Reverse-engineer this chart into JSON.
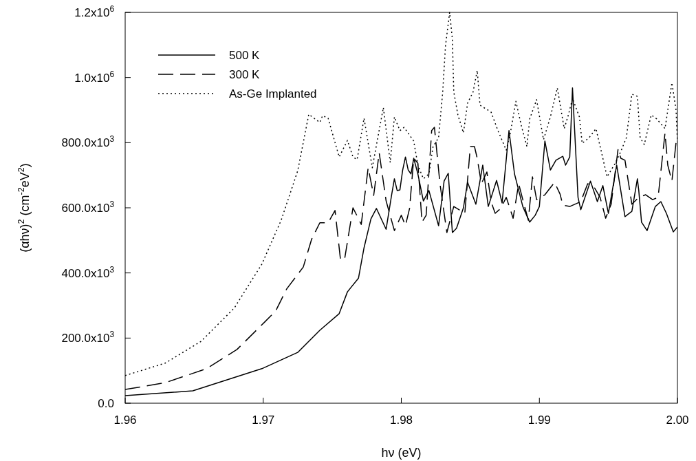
{
  "chart_data": {
    "type": "line",
    "xlabel": "hν (eV)",
    "ylabel": "(αhν)$^{2}$  (cm$^{-2}$eV$^{2}$)",
    "xlim": [
      1.96,
      2.0
    ],
    "xticks": [
      1.96,
      1.97,
      1.98,
      1.99,
      {
        "value": 2.0,
        "label": "2.00"
      }
    ],
    "ylim": [
      0,
      1200000
    ],
    "yticks": [
      {
        "value": 0,
        "label": "0.0"
      },
      {
        "value": 200000,
        "label": "200.0x10$^{3}$"
      },
      {
        "value": 400000,
        "label": "400.0x10$^{3}$"
      },
      {
        "value": 600000,
        "label": "600.0x10$^{3}$"
      },
      {
        "value": 800000,
        "label": "800.0x10$^{3}$"
      },
      {
        "value": 1000000,
        "label": "1.0x10$^{6}$"
      },
      {
        "value": 1200000,
        "label": "1.2x10$^{6}$"
      }
    ],
    "grid": false,
    "legend": "top left",
    "marker": "none",
    "series": [
      {
        "name": "500 K",
        "color": "#000000",
        "line_style": "solid",
        "x": [
          1.96,
          1.9649,
          1.9699,
          1.9725,
          1.9741,
          1.9755,
          1.9761,
          1.9769,
          1.9773,
          1.9778,
          1.9782,
          1.9789,
          1.9793,
          1.9795,
          1.9797,
          1.9799,
          1.9801,
          1.9803,
          1.9805,
          1.9807,
          1.9809,
          1.9812,
          1.9816,
          1.982,
          1.9827,
          1.9831,
          1.9834,
          1.9837,
          1.984,
          1.9845,
          1.9848,
          1.9854,
          1.9859,
          1.9863,
          1.9869,
          1.9873,
          1.9878,
          1.9882,
          1.9888,
          1.9893,
          1.9897,
          1.99,
          1.9904,
          1.9908,
          1.9912,
          1.9917,
          1.9919,
          1.9922,
          1.9924,
          1.9928,
          1.993,
          1.9937,
          1.9942,
          1.9946,
          1.995,
          1.9956,
          1.9962,
          1.9967,
          1.9971,
          1.9972,
          1.9974,
          1.9978,
          1.9984,
          1.9988,
          1.9992,
          1.9997,
          2.0
        ],
        "values": [
          23000,
          38000,
          106000,
          156000,
          224000,
          275000,
          342000,
          384000,
          477000,
          566000,
          598000,
          534000,
          640000,
          689000,
          653000,
          655000,
          716000,
          756000,
          716000,
          704000,
          752000,
          704000,
          621000,
          653000,
          545000,
          682000,
          706000,
          524000,
          537000,
          600000,
          678000,
          611000,
          731000,
          604000,
          684000,
          615000,
          837000,
          704000,
          604000,
          556000,
          577000,
          604000,
          805000,
          716000,
          746000,
          758000,
          731000,
          756000,
          968000,
          632000,
          594000,
          682000,
          619000,
          668000,
          583000,
          731000,
          573000,
          589000,
          689000,
          653000,
          556000,
          530000,
          604000,
          619000,
          583000,
          526000,
          541000
        ]
      },
      {
        "name": "300 K",
        "color": "#000000",
        "line_style": "dashed",
        "x": [
          1.96,
          1.9629,
          1.9659,
          1.9681,
          1.9701,
          1.9709,
          1.9717,
          1.9729,
          1.9735,
          1.9741,
          1.9747,
          1.9752,
          1.9756,
          1.9759,
          1.9765,
          1.9771,
          1.9776,
          1.978,
          1.9784,
          1.9789,
          1.9795,
          1.98,
          1.9803,
          1.9806,
          1.9809,
          1.9812,
          1.9815,
          1.9818,
          1.9822,
          1.9824,
          1.9828,
          1.9833,
          1.9838,
          1.9846,
          1.985,
          1.9853,
          1.9855,
          1.9858,
          1.9862,
          1.9865,
          1.9868,
          1.9872,
          1.9876,
          1.9881,
          1.9885,
          1.9888,
          1.9892,
          1.9895,
          1.9898,
          1.9904,
          1.9911,
          1.9915,
          1.9917,
          1.9922,
          1.993,
          1.9935,
          1.994,
          1.9944,
          1.9948,
          1.9952,
          1.9957,
          1.9959,
          1.9962,
          1.9967,
          1.9972,
          1.9977,
          1.9982,
          1.9986,
          1.9991,
          1.9993,
          1.9996,
          1.9999,
          2.0
        ],
        "values": [
          42000,
          63000,
          106000,
          165000,
          249000,
          283000,
          351000,
          418000,
          503000,
          554000,
          554000,
          592000,
          439000,
          444000,
          600000,
          549000,
          723000,
          638000,
          769000,
          621000,
          530000,
          577000,
          545000,
          598000,
          752000,
          737000,
          556000,
          577000,
          837000,
          847000,
          674000,
          524000,
          604000,
          583000,
          788000,
          788000,
          752000,
          674000,
          710000,
          619000,
          583000,
          598000,
          632000,
          568000,
          674000,
          625000,
          562000,
          695000,
          625000,
          640000,
          678000,
          642000,
          608000,
          604000,
          619000,
          674000,
          661000,
          632000,
          568000,
          611000,
          780000,
          752000,
          746000,
          611000,
          632000,
          640000,
          625000,
          632000,
          830000,
          731000,
          682000,
          801000,
          815000
        ]
      },
      {
        "name": "As-Ge Implanted",
        "color": "#000000",
        "line_style": "dotted",
        "x": [
          1.96,
          1.9629,
          1.9655,
          1.9679,
          1.9699,
          1.9713,
          1.9725,
          1.9733,
          1.9741,
          1.9743,
          1.9747,
          1.9755,
          1.9761,
          1.9765,
          1.9768,
          1.9773,
          1.9779,
          1.9787,
          1.9792,
          1.9795,
          1.9799,
          1.9802,
          1.9809,
          1.9812,
          1.9816,
          1.982,
          1.9823,
          1.9827,
          1.983,
          1.9832,
          1.9835,
          1.9837,
          1.9838,
          1.9841,
          1.9845,
          1.9848,
          1.9852,
          1.9855,
          1.9857,
          1.9865,
          1.987,
          1.9876,
          1.9879,
          1.9883,
          1.9887,
          1.9891,
          1.9893,
          1.9898,
          1.9903,
          1.9908,
          1.9913,
          1.9918,
          1.9921,
          1.9924,
          1.9929,
          1.9931,
          1.9936,
          1.9941,
          1.9946,
          1.9949,
          1.9955,
          1.9959,
          1.9963,
          1.9967,
          1.9971,
          1.9973,
          1.9976,
          1.9981,
          1.9985,
          1.9991,
          1.9996,
          1.9999,
          2.0
        ],
        "values": [
          85000,
          123000,
          190000,
          292000,
          427000,
          562000,
          714000,
          887000,
          862000,
          883000,
          875000,
          756000,
          807000,
          756000,
          748000,
          875000,
          723000,
          908000,
          739000,
          879000,
          837000,
          847000,
          805000,
          731000,
          689000,
          704000,
          788000,
          815000,
          956000,
          1097000,
          1200000,
          1118000,
          956000,
          885000,
          830000,
          921000,
          956000,
          1022000,
          915000,
          894000,
          837000,
          777000,
          830000,
          927000,
          851000,
          788000,
          873000,
          932000,
          809000,
          879000,
          968000,
          843000,
          885000,
          936000,
          879000,
          798000,
          815000,
          843000,
          752000,
          695000,
          737000,
          773000,
          815000,
          949000,
          942000,
          815000,
          794000,
          885000,
          873000,
          843000,
          984000,
          900000,
          801000
        ]
      }
    ]
  }
}
